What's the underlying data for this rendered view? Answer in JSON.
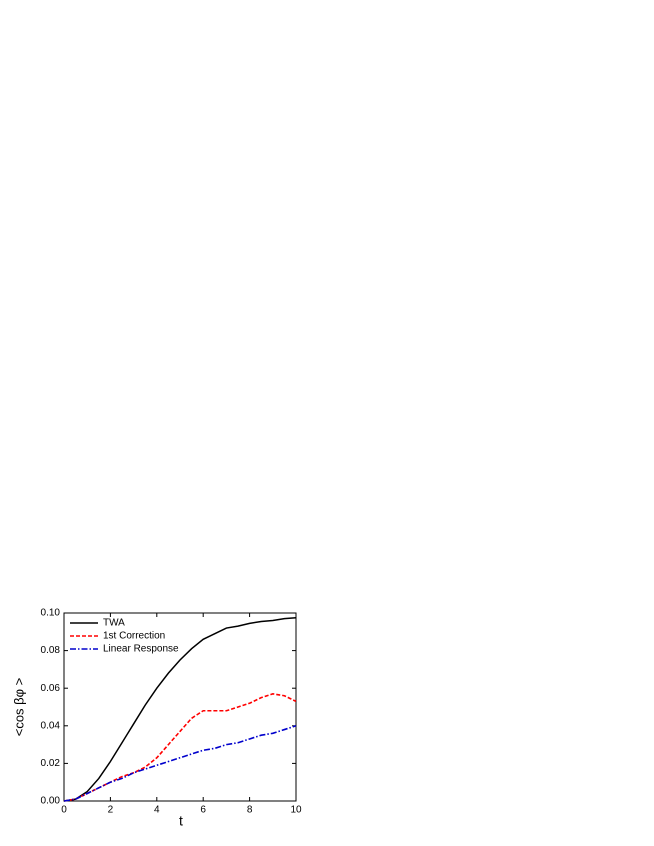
{
  "chart_data": {
    "type": "line",
    "xlabel": "t",
    "ylabel": "<cos βφ >",
    "x": [
      0,
      0.5,
      1,
      1.5,
      2,
      2.5,
      3,
      3.5,
      4,
      4.5,
      5,
      5.5,
      6,
      6.5,
      7,
      7.5,
      8,
      8.5,
      9,
      9.5,
      10
    ],
    "series": [
      {
        "name": "TWA",
        "color": "#000000",
        "style": "solid",
        "values": [
          0,
          0.001,
          0.005,
          0.012,
          0.021,
          0.031,
          0.041,
          0.051,
          0.06,
          0.068,
          0.075,
          0.081,
          0.086,
          0.089,
          0.092,
          0.093,
          0.0945,
          0.0955,
          0.096,
          0.097,
          0.0975
        ]
      },
      {
        "name": "1st Correction",
        "color": "#ff0000",
        "style": "dash",
        "values": [
          0,
          0.001,
          0.004,
          0.007,
          0.01,
          0.013,
          0.015,
          0.018,
          0.023,
          0.03,
          0.037,
          0.044,
          0.048,
          0.048,
          0.048,
          0.05,
          0.052,
          0.055,
          0.057,
          0.056,
          0.053
        ]
      },
      {
        "name": "Linear Response",
        "color": "#0000cc",
        "style": "dashdot",
        "values": [
          0,
          0.001,
          0.004,
          0.007,
          0.01,
          0.012,
          0.015,
          0.017,
          0.019,
          0.021,
          0.023,
          0.025,
          0.027,
          0.028,
          0.03,
          0.031,
          0.033,
          0.035,
          0.036,
          0.038,
          0.04
        ]
      }
    ],
    "xlim": [
      0,
      10
    ],
    "xticks": [
      0,
      2,
      4,
      6,
      8,
      10
    ],
    "ylim": [
      0,
      0.1
    ],
    "yticks": [
      {
        "value": 0,
        "label": "0.00"
      },
      {
        "value": 0.02,
        "label": "0.02"
      },
      {
        "value": 0.04,
        "label": "0.04"
      },
      {
        "value": 0.06,
        "label": "0.06"
      },
      {
        "value": 0.08,
        "label": "0.08"
      },
      {
        "value": 0.1,
        "label": "0.10"
      }
    ],
    "legend": "upper-left",
    "grid": false
  }
}
